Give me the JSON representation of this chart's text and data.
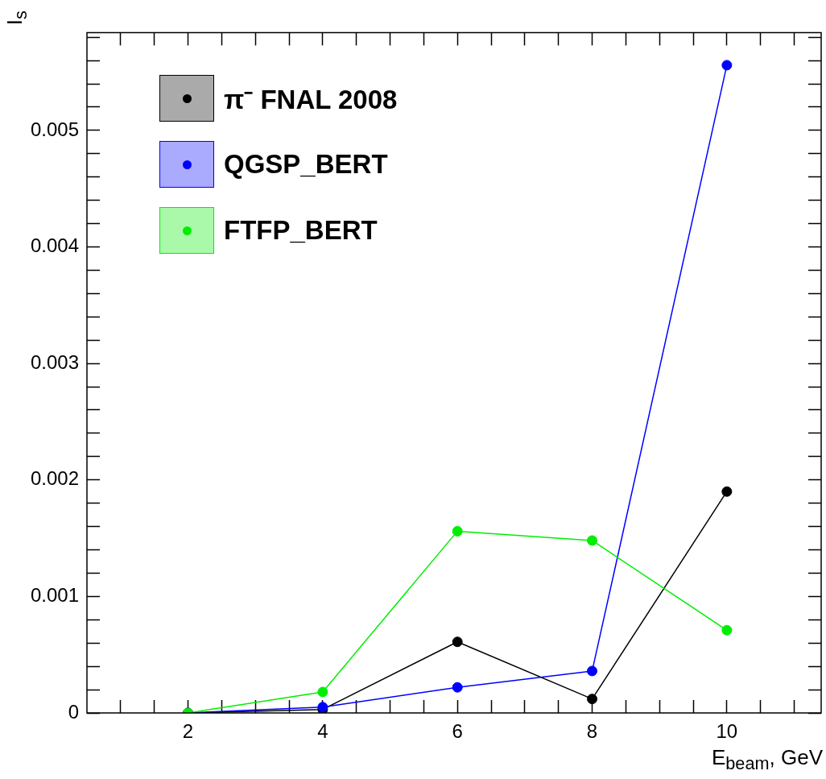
{
  "chart_data": {
    "type": "line",
    "xlabel": "E$_{beam}$, GeV",
    "ylabel": "I$_{s}$",
    "x": [
      2,
      4,
      6,
      8,
      10
    ],
    "series": [
      {
        "name": "π⁻ FNAL 2008",
        "color": "#000000",
        "values": [
          0,
          3e-05,
          0.00061,
          0.00012,
          0.0019
        ]
      },
      {
        "name": "QGSP_BERT",
        "color": "#0000ff",
        "values": [
          0,
          5e-05,
          0.00022,
          0.00036,
          0.00556
        ]
      },
      {
        "name": "FTFP_BERT",
        "color": "#00ee00",
        "values": [
          0,
          0.00018,
          0.00156,
          0.00148,
          0.00071
        ]
      }
    ],
    "xlim": [
      0.5,
      11.4
    ],
    "xticks": [
      {
        "value": 1,
        "label": null
      },
      {
        "value": 1.5,
        "label": null
      },
      2,
      {
        "value": 2.5,
        "label": null
      },
      {
        "value": 3,
        "label": null
      },
      {
        "value": 3.5,
        "label": null
      },
      4,
      {
        "value": 4.5,
        "label": null
      },
      {
        "value": 5,
        "label": null
      },
      {
        "value": 5.5,
        "label": null
      },
      6,
      {
        "value": 6.5,
        "label": null
      },
      {
        "value": 7,
        "label": null
      },
      {
        "value": 7.5,
        "label": null
      },
      8,
      {
        "value": 8.5,
        "label": null
      },
      {
        "value": 9,
        "label": null
      },
      {
        "value": 9.5,
        "label": null
      },
      10,
      {
        "value": 10.5,
        "label": null
      },
      {
        "value": 11,
        "label": null
      }
    ],
    "ylim": [
      0,
      0.00584
    ],
    "yticks": [
      0,
      {
        "value": 0.0002,
        "label": null
      },
      {
        "value": 0.0004,
        "label": null
      },
      {
        "value": 0.0006,
        "label": null
      },
      {
        "value": 0.0008,
        "label": null
      },
      0.001,
      {
        "value": 0.0012,
        "label": null
      },
      {
        "value": 0.0014,
        "label": null
      },
      {
        "value": 0.0016,
        "label": null
      },
      {
        "value": 0.0018,
        "label": null
      },
      0.002,
      {
        "value": 0.0022,
        "label": null
      },
      {
        "value": 0.0024,
        "label": null
      },
      {
        "value": 0.0026,
        "label": null
      },
      {
        "value": 0.0028,
        "label": null
      },
      0.003,
      {
        "value": 0.0032,
        "label": null
      },
      {
        "value": 0.0034,
        "label": null
      },
      {
        "value": 0.0036,
        "label": null
      },
      {
        "value": 0.0038,
        "label": null
      },
      0.004,
      {
        "value": 0.0042,
        "label": null
      },
      {
        "value": 0.0044,
        "label": null
      },
      {
        "value": 0.0046,
        "label": null
      },
      {
        "value": 0.0048,
        "label": null
      },
      0.005,
      {
        "value": 0.0052,
        "label": null
      },
      {
        "value": 0.0054,
        "label": null
      },
      {
        "value": 0.0056,
        "label": null
      },
      {
        "value": 0.0058,
        "label": null
      }
    ],
    "grid": false,
    "legend": "top left",
    "marker": "circle",
    "line_style": "solid"
  }
}
